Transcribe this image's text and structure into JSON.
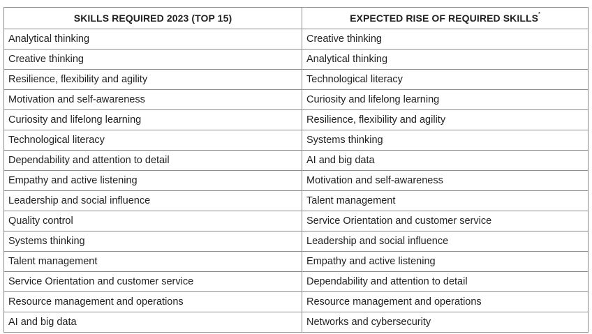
{
  "table": {
    "headers": {
      "col1": "SKILLS REQUIRED 2023 (TOP 15)",
      "col2": "EXPECTED RISE OF REQUIRED SKILLS",
      "col2_footnote_mark": "*"
    },
    "rows": [
      {
        "left": "Analytical thinking",
        "right": "Creative thinking"
      },
      {
        "left": "Creative thinking",
        "right": "Analytical thinking"
      },
      {
        "left": "Resilience, flexibility and agility",
        "right": "Technological literacy"
      },
      {
        "left": "Motivation and self-awareness",
        "right": "Curiosity and lifelong learning"
      },
      {
        "left": "Curiosity and lifelong learning",
        "right": "Resilience, flexibility and agility"
      },
      {
        "left": "Technological literacy",
        "right": "Systems thinking"
      },
      {
        "left": "Dependability and attention to detail",
        "right": "AI and big data"
      },
      {
        "left": "Empathy and active listening",
        "right": "Motivation and self-awareness"
      },
      {
        "left": "Leadership and social influence",
        "right": "Talent management"
      },
      {
        "left": "Quality control",
        "right": "Service Orientation and customer service"
      },
      {
        "left": "Systems thinking",
        "right": "Leadership and social influence"
      },
      {
        "left": "Talent management",
        "right": "Empathy and active listening"
      },
      {
        "left": "Service Orientation and customer service",
        "right": "Dependability and attention to detail"
      },
      {
        "left": "Resource management and operations",
        "right": "Resource management and operations"
      },
      {
        "left": "AI and big data",
        "right": "Networks and cybersecurity"
      }
    ]
  }
}
